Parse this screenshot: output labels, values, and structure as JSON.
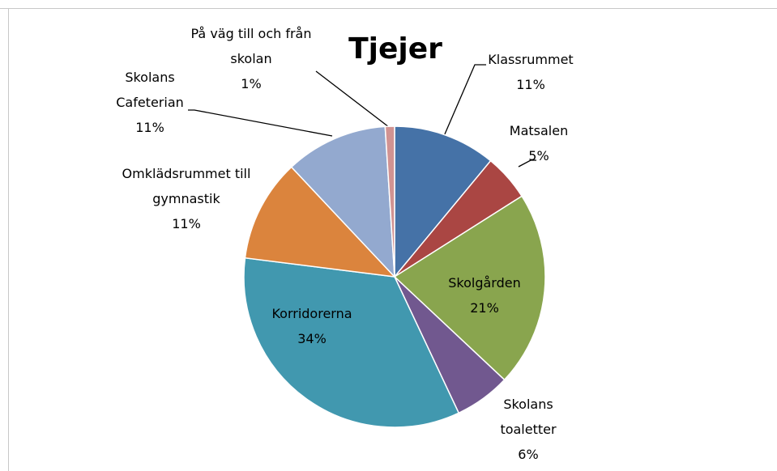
{
  "chart_data": {
    "type": "pie",
    "title": "Tjejer",
    "categories": [
      "Klassrummet",
      "Matsalen",
      "Skolgården",
      "Skolans toaletter",
      "Korridorerna",
      "Omklädsrummet till gymnastik",
      "Skolans Cafeterian",
      "På väg till och från skolan"
    ],
    "values": [
      11,
      5,
      21,
      6,
      34,
      11,
      11,
      1
    ],
    "value_labels": [
      "11%",
      "5%",
      "21%",
      "6%",
      "34%",
      "11%",
      "11%",
      "1%"
    ],
    "colors": [
      "#4572a7",
      "#aa4643",
      "#89a54e",
      "#71588f",
      "#4198af",
      "#db843d",
      "#93a9cf",
      "#d19392"
    ]
  }
}
